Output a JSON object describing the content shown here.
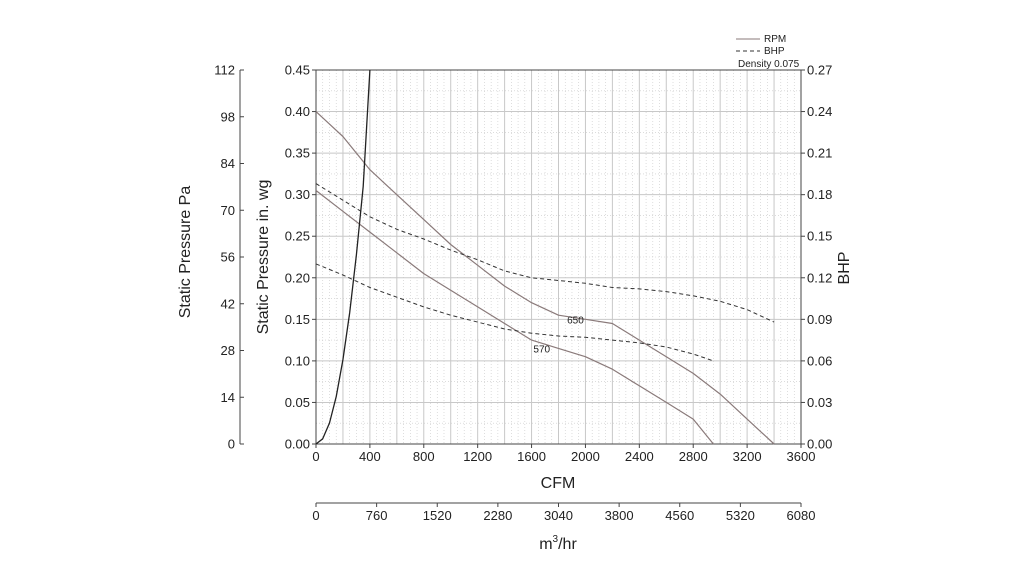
{
  "chart_data": {
    "type": "line",
    "title": "",
    "legend": {
      "placement": "top-right",
      "entries": [
        {
          "label": "RPM",
          "style": "solid"
        },
        {
          "label": "BHP",
          "style": "dashed"
        }
      ],
      "note": "Density 0.075"
    },
    "axes": {
      "x_primary": {
        "label": "CFM",
        "range": [
          0,
          3600
        ],
        "ticks": [
          "0",
          "400",
          "800",
          "1200",
          "1600",
          "2000",
          "2400",
          "2800",
          "3200",
          "3600"
        ]
      },
      "x_secondary": {
        "label_base": "m",
        "label_sup": "3",
        "label_tail": "/hr",
        "range": [
          0,
          6080
        ],
        "ticks": [
          "0",
          "760",
          "1520",
          "2280",
          "3040",
          "3800",
          "4560",
          "5320",
          "6080"
        ]
      },
      "y_left_inner": {
        "label": "Static Pressure in. wg",
        "range": [
          0,
          0.45
        ],
        "ticks": [
          "0.00",
          "0.05",
          "0.10",
          "0.15",
          "0.20",
          "0.25",
          "0.30",
          "0.35",
          "0.40",
          "0.45"
        ]
      },
      "y_left_outer": {
        "label": "Static Pressure Pa",
        "range": [
          0,
          112
        ],
        "ticks": [
          "0",
          "14",
          "28",
          "42",
          "56",
          "70",
          "84",
          "98",
          "112"
        ]
      },
      "y_right": {
        "label": "BHP",
        "range": [
          0,
          0.27
        ],
        "ticks": [
          "0.00",
          "0.03",
          "0.06",
          "0.09",
          "0.12",
          "0.15",
          "0.18",
          "0.21",
          "0.24",
          "0.27"
        ]
      }
    },
    "grid": true,
    "colors": {
      "rpm": "#8a7a7a",
      "bhp": "#333333",
      "system": "#222222",
      "grid": "#c8c8c8"
    },
    "series": [
      {
        "name": "650",
        "kind": "RPM",
        "axis": "pressure",
        "x": [
          0,
          200,
          400,
          600,
          800,
          1000,
          1200,
          1400,
          1600,
          1800,
          2000,
          2200,
          2400,
          2600,
          2800,
          3000,
          3200,
          3400
        ],
        "y": [
          0.4,
          0.37,
          0.33,
          0.3,
          0.27,
          0.24,
          0.215,
          0.19,
          0.17,
          0.155,
          0.15,
          0.145,
          0.125,
          0.105,
          0.085,
          0.06,
          0.03,
          0.0
        ]
      },
      {
        "name": "570",
        "kind": "RPM",
        "axis": "pressure",
        "x": [
          0,
          200,
          400,
          600,
          800,
          1000,
          1200,
          1400,
          1600,
          1800,
          2000,
          2200,
          2400,
          2600,
          2800,
          2950
        ],
        "y": [
          0.305,
          0.28,
          0.255,
          0.23,
          0.205,
          0.185,
          0.165,
          0.145,
          0.125,
          0.115,
          0.105,
          0.09,
          0.07,
          0.05,
          0.03,
          0.0
        ]
      },
      {
        "kind": "BHP",
        "rpm": "650",
        "axis": "bhp",
        "x": [
          0,
          200,
          400,
          600,
          800,
          1000,
          1200,
          1400,
          1600,
          1800,
          2000,
          2200,
          2400,
          2600,
          2800,
          3000,
          3200,
          3400
        ],
        "y": [
          0.188,
          0.176,
          0.164,
          0.155,
          0.148,
          0.14,
          0.133,
          0.125,
          0.12,
          0.118,
          0.116,
          0.113,
          0.112,
          0.11,
          0.107,
          0.103,
          0.097,
          0.088
        ]
      },
      {
        "kind": "BHP",
        "rpm": "570",
        "axis": "bhp",
        "x": [
          0,
          200,
          400,
          600,
          800,
          1000,
          1200,
          1400,
          1600,
          1800,
          2000,
          2200,
          2400,
          2600,
          2800,
          2950
        ],
        "y": [
          0.13,
          0.122,
          0.113,
          0.106,
          0.099,
          0.093,
          0.088,
          0.083,
          0.08,
          0.078,
          0.077,
          0.075,
          0.073,
          0.07,
          0.065,
          0.06
        ]
      },
      {
        "kind": "system",
        "axis": "pressure",
        "x": [
          0,
          50,
          100,
          150,
          200,
          250,
          300,
          350,
          400
        ],
        "y": [
          0.0,
          0.0063,
          0.0253,
          0.0569,
          0.1012,
          0.1581,
          0.2277,
          0.3099,
          0.45
        ]
      }
    ],
    "curve_labels": [
      {
        "text": "650",
        "x": 2000,
        "y": 0.15
      },
      {
        "text": "570",
        "x": 1750,
        "y": 0.115
      }
    ]
  }
}
